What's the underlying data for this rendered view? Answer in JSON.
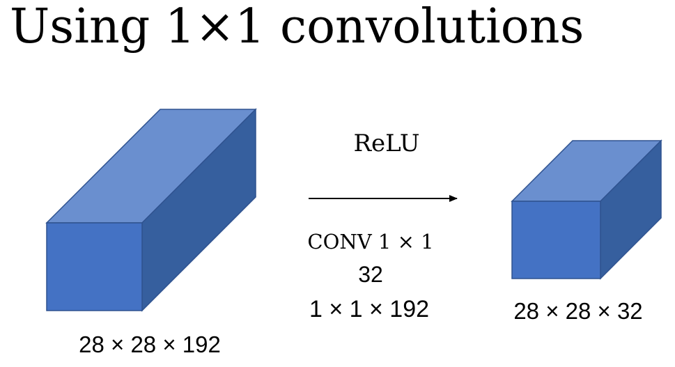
{
  "title": "Using 1×1 convolutions",
  "input_volume": {
    "dims_label": "28 × 28 × 192"
  },
  "operation": {
    "activation": "ReLU",
    "conv_label": "CONV 1 × 1",
    "filter_count": "32",
    "filter_shape": "1 × 1 × 192"
  },
  "output_volume": {
    "dims_label": "28 × 28 × 32"
  },
  "colors": {
    "front_face": "#4472c4",
    "top_face": "#6a8fcf",
    "side_face": "#365f9e",
    "edge": "#2f528f"
  }
}
